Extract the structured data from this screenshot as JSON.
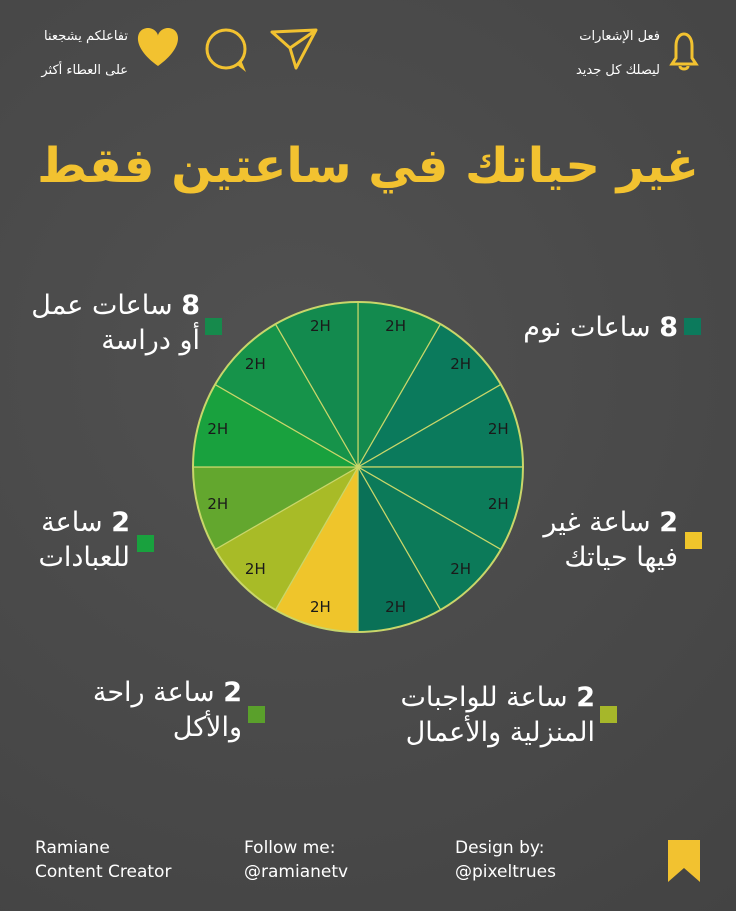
{
  "header": {
    "engage_lines": [
      "تفاعلكم يشجعنا",
      "على العطاء أكثر"
    ],
    "notify_lines": [
      "فعل الإشعارات",
      "ليصلك كل جديد"
    ]
  },
  "chart_data": {
    "type": "pie",
    "title": "غير حياتك في ساعتين فقط",
    "values": [
      2,
      2,
      2,
      2,
      2,
      2,
      2,
      2,
      2,
      2,
      2,
      2
    ],
    "value_labels": [
      "2H",
      "2H",
      "2H",
      "2H",
      "2H",
      "2H",
      "2H",
      "2H",
      "2H",
      "2H",
      "2H",
      "2H"
    ],
    "colors": [
      "#138a4e",
      "#0b7a5c",
      "#0b7a5c",
      "#0c7c5a",
      "#0c7a59",
      "#0a7157",
      "#efc52b",
      "#a8bb27",
      "#63a72e",
      "#19a13e",
      "#16934a",
      "#138a4e"
    ],
    "legend": [
      {
        "number": "8",
        "lines": [
          "ساعات عمل",
          "أو دراسة"
        ],
        "color": "#168a4c"
      },
      {
        "number": "8",
        "lines": [
          "ساعات نوم"
        ],
        "color": "#0c7a5c"
      },
      {
        "number": "2",
        "lines": [
          "ساعة غير",
          "فيها حياتك"
        ],
        "color": "#efc52b"
      },
      {
        "number": "2",
        "lines": [
          "ساعة",
          "للعبادات"
        ],
        "color": "#19a13e"
      },
      {
        "number": "2",
        "lines": [
          "ساعة راحة",
          "والأكل"
        ],
        "color": "#5aa02b"
      },
      {
        "number": "2",
        "lines": [
          "ساعة للواجبات",
          "المنزلية والأعمال"
        ],
        "color": "#a6b72a"
      }
    ]
  },
  "footer": {
    "author_lines": [
      "Ramiane",
      "Content Creator"
    ],
    "follow_lines": [
      "Follow me:",
      "@ramianetv"
    ],
    "design_lines": [
      "Design by:",
      "@pixeltrues"
    ]
  }
}
